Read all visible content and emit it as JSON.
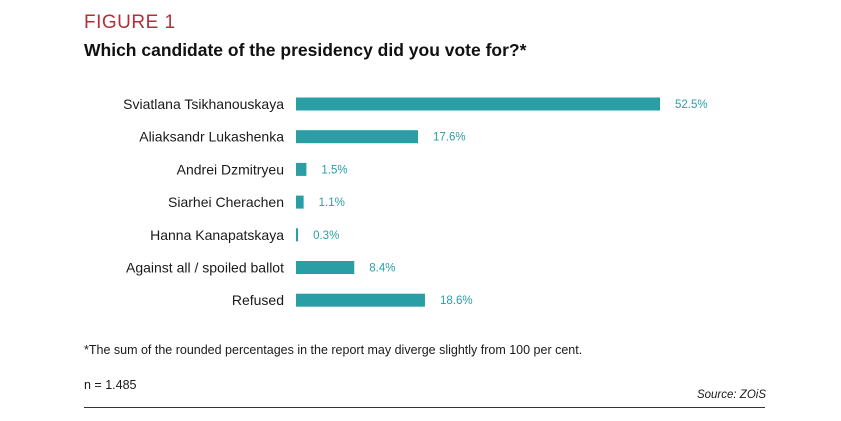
{
  "figure_label": "FIGURE 1",
  "title": "Which candidate of the presidency did you vote for?*",
  "footnote": "*The sum of the rounded percentages in the report may diverge slightly from 100 per cent.",
  "sample": "n = 1.485",
  "source": "Source: ZOiS",
  "colors": {
    "bar": "#2a9ea5",
    "figure_label": "#b0313a"
  },
  "chart_data": {
    "type": "bar",
    "orientation": "horizontal",
    "categories": [
      "Sviatlana Tsikhanouskaya",
      "Aliaksandr Lukashenka",
      "Andrei Dzmitryeu",
      "Siarhei Cherachen",
      "Hanna Kanapatskaya",
      "Against all / spoiled ballot",
      "Refused"
    ],
    "values": [
      52.5,
      17.6,
      1.5,
      1.1,
      0.3,
      8.4,
      18.6
    ],
    "value_labels": [
      "52.5%",
      "17.6%",
      "1.5%",
      "1.1%",
      "0.3%",
      "8.4%",
      "18.6%"
    ],
    "title": "Which candidate of the presidency did you vote for?*",
    "xlabel": "",
    "ylabel": "",
    "xlim": [
      0,
      52.5
    ],
    "grid": false
  }
}
